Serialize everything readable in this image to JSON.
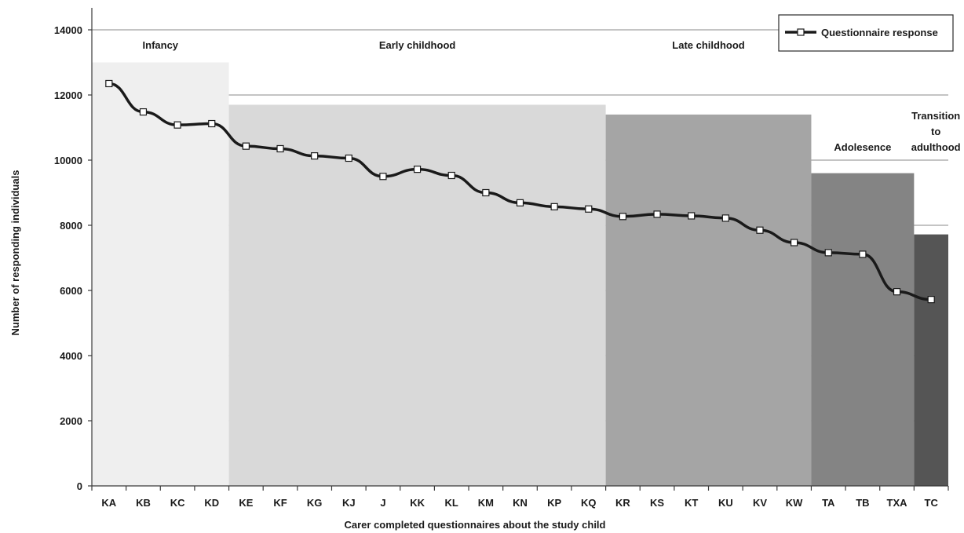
{
  "chart_data": {
    "type": "line",
    "title": "",
    "xlabel": "Carer completed questionnaires about the study child",
    "ylabel": "Number of responding individuals",
    "ylim": [
      0,
      14000
    ],
    "yticks": [
      "0",
      "2000",
      "4000",
      "6000",
      "8000",
      "10000",
      "12000",
      "14000"
    ],
    "grid": true,
    "legend_position": "top-right",
    "categories": [
      "KA",
      "KB",
      "KC",
      "KD",
      "KE",
      "KF",
      "KG",
      "KJ",
      "J",
      "KK",
      "KL",
      "KM",
      "KN",
      "KP",
      "KQ",
      "KR",
      "KS",
      "KT",
      "KU",
      "KV",
      "KW",
      "TA",
      "TB",
      "TXA",
      "TC"
    ],
    "series": [
      {
        "name": "Questionnaire response",
        "values": [
          12350,
          11480,
          11080,
          11120,
          10430,
          10350,
          10130,
          10060,
          9500,
          9720,
          9530,
          9000,
          8690,
          8570,
          8500,
          8270,
          8340,
          8290,
          8220,
          7850,
          7470,
          7160,
          7110,
          5960,
          5720
        ],
        "color": "#1a1a1a"
      }
    ],
    "stages": [
      {
        "label": "Infancy",
        "start": 0,
        "end": 3,
        "height": 13000,
        "color": "#efefef"
      },
      {
        "label": "Early childhood",
        "start": 4,
        "end": 14,
        "height": 11700,
        "color": "#d9d9d9"
      },
      {
        "label": "Late childhood",
        "start": 15,
        "end": 20,
        "height": 11400,
        "color": "#a5a5a5"
      },
      {
        "label": "Adolesence",
        "start": 21,
        "end": 23,
        "height": 9600,
        "color": "#848484"
      },
      {
        "label": "Transition to adulthood",
        "start": 24,
        "end": 24,
        "height": 7720,
        "color": "#555555"
      }
    ]
  }
}
